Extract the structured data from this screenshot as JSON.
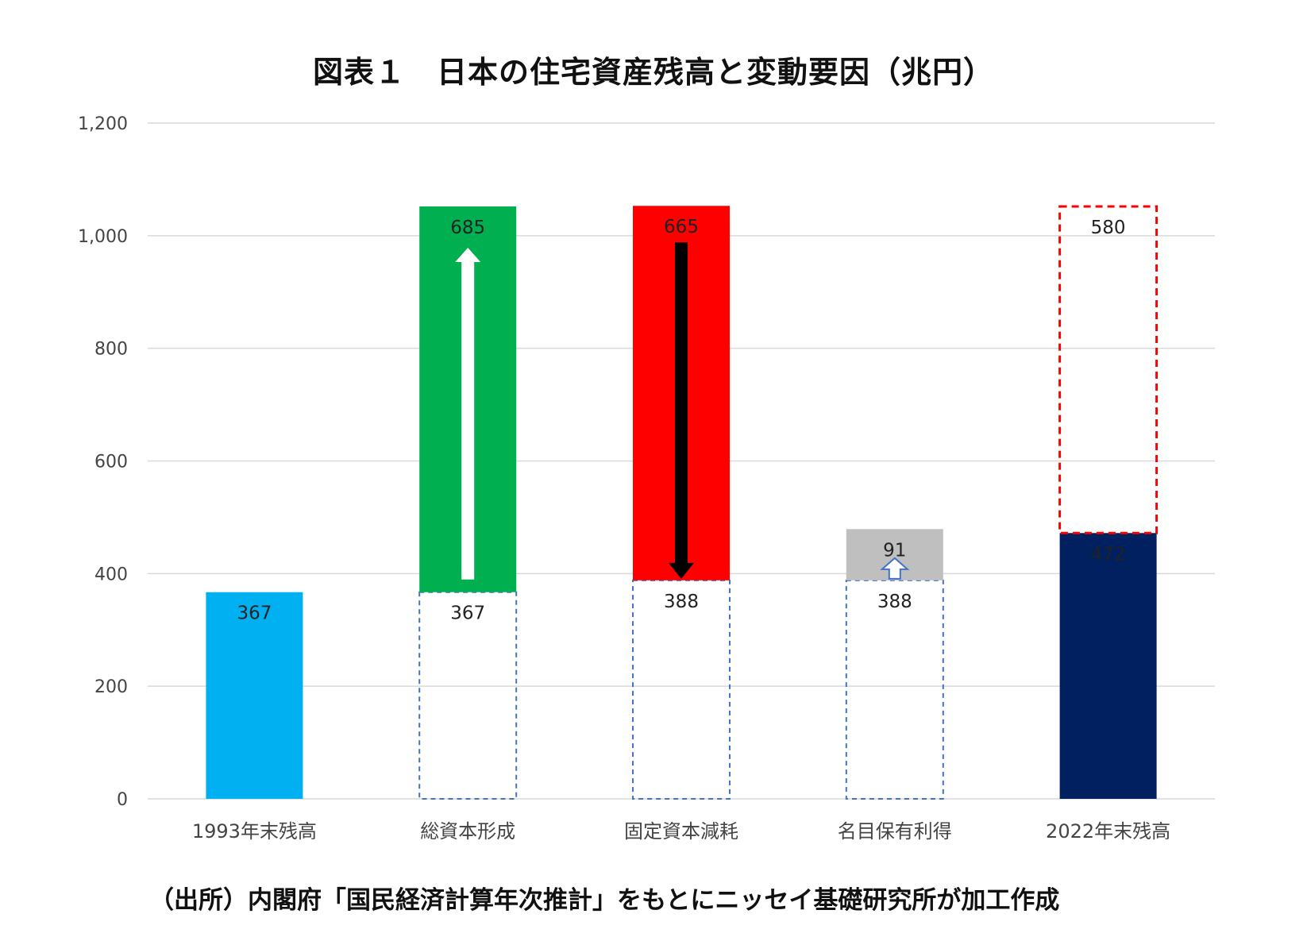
{
  "title": "図表１　日本の住宅資産残高と変動要因（兆円）",
  "source": "（出所）内閣府「国民経済計算年次推計」をもとにニッセイ基礎研究所が加工作成",
  "chart_data": {
    "type": "bar",
    "title": "図表１　日本の住宅資産残高と変動要因（兆円）",
    "xlabel": "",
    "ylabel": "",
    "ylim": [
      0,
      1200
    ],
    "yticks": [
      0,
      200,
      400,
      600,
      800,
      1000,
      1200
    ],
    "ytick_labels": [
      "0",
      "200",
      "400",
      "600",
      "800",
      "1,000",
      "1,200"
    ],
    "grid": true,
    "legend": "none",
    "categories": [
      "1993年末残高",
      "総資本形成",
      "固定資本減耗",
      "名目保有利得",
      "2022年末残高"
    ],
    "bars": [
      {
        "category": "1993年末残高",
        "base": 0,
        "value": 367,
        "top": 367,
        "color": "#00b0f0",
        "label": "367",
        "label_color": "#222",
        "base_label": null,
        "arrow": null,
        "style": "solid"
      },
      {
        "category": "総資本形成",
        "base": 367,
        "value": 685,
        "top": 1052,
        "color": "#00b050",
        "label": "685",
        "label_color": "#222",
        "base_label": "367",
        "arrow": "up-white",
        "style": "solid"
      },
      {
        "category": "固定資本減耗",
        "base": 388,
        "value": 665,
        "top": 1053,
        "color": "#ff0000",
        "label": "665",
        "label_color": "#222",
        "base_label": "388",
        "arrow": "down-black",
        "style": "solid"
      },
      {
        "category": "名目保有利得",
        "base": 388,
        "value": 91,
        "top": 479,
        "color": "#bfbfbf",
        "label": "91",
        "label_color": "#222",
        "base_label": "388",
        "arrow": "up-outline",
        "style": "solid"
      },
      {
        "category": "2022年末残高",
        "base": 0,
        "value": 472,
        "top": 472,
        "color": "#002060",
        "label": "472",
        "label_color": "#ffffff",
        "base_label": null,
        "arrow": null,
        "style": "solid"
      }
    ],
    "overlay": {
      "category": "2022年末残高",
      "base": 472,
      "value": 580,
      "top": 1052,
      "color": "#ff0000",
      "style": "dashed",
      "label": "580",
      "label_color": "#e03030"
    },
    "colors": {
      "grid": "#d9d9d9",
      "base_outline": "#4472c4"
    }
  }
}
